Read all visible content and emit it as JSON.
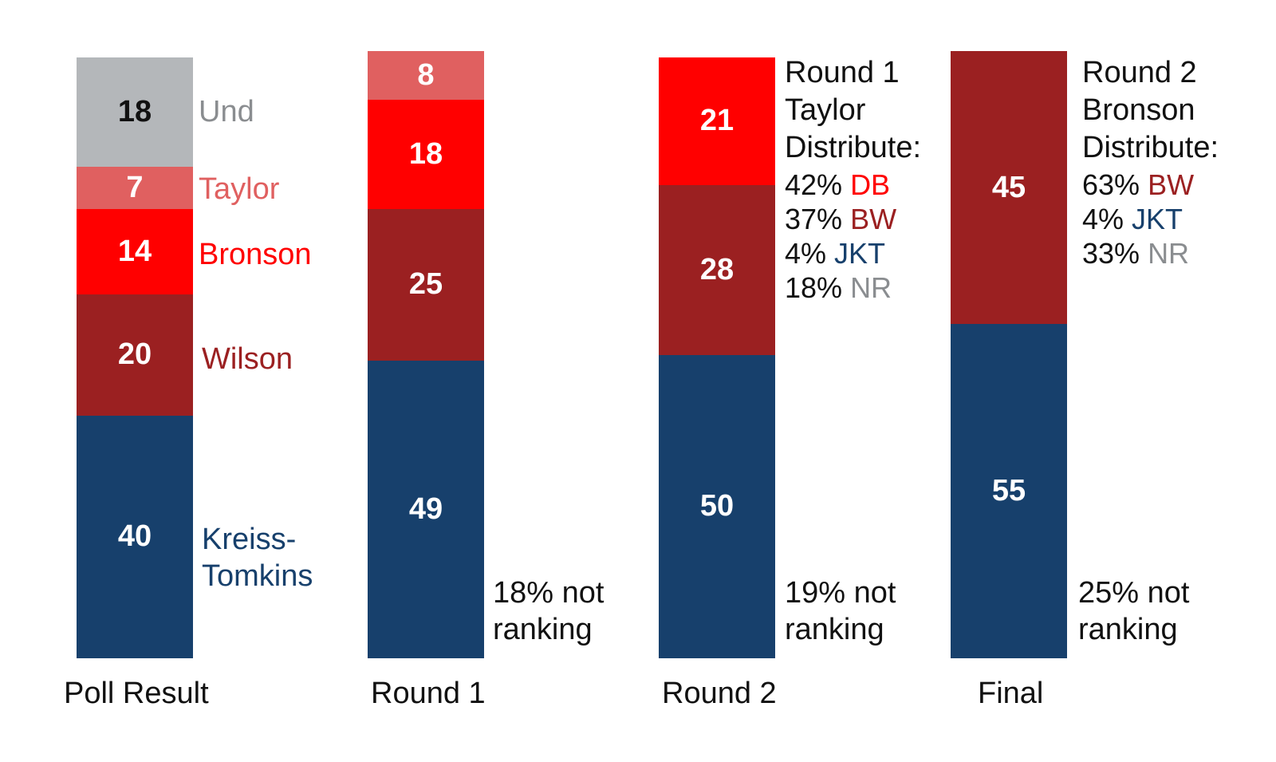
{
  "chart_data": {
    "type": "bar",
    "stacked": true,
    "categories": [
      "Poll Result",
      "Round 1",
      "Round 2",
      "Final"
    ],
    "series": [
      {
        "name": "Kreiss-Tomkins",
        "color": "#17406c",
        "values": [
          40,
          49,
          50,
          55
        ]
      },
      {
        "name": "Wilson",
        "color": "#9b2021",
        "values": [
          20,
          25,
          28,
          45
        ]
      },
      {
        "name": "Bronson",
        "color": "#ff0000",
        "values": [
          14,
          18,
          21,
          null
        ]
      },
      {
        "name": "Taylor",
        "color": "#e06060",
        "values": [
          7,
          8,
          null,
          null
        ]
      },
      {
        "name": "Und",
        "color": "#b4b7ba",
        "values": [
          18,
          null,
          null,
          null
        ]
      }
    ],
    "legend_labels": [
      {
        "text": "Und",
        "color": "#8a8d90"
      },
      {
        "text": "Taylor",
        "color": "#e06060"
      },
      {
        "text": "Bronson",
        "color": "#ff0000"
      },
      {
        "text": "Wilson",
        "color": "#9b2021"
      },
      {
        "text": "Kreiss-",
        "color": "#17406c"
      },
      {
        "text": "Tomkins",
        "color": "#17406c"
      }
    ],
    "notes": [
      {
        "line1": "18% not",
        "line2": "ranking"
      },
      {
        "line1": "19% not",
        "line2": "ranking"
      },
      {
        "line1": "25% not",
        "line2": "ranking"
      }
    ],
    "distributions": [
      {
        "title": [
          "Round 1",
          "Taylor",
          "Distribute:"
        ],
        "rows": [
          {
            "pct": "42%",
            "code": "DB",
            "color": "#ff0000"
          },
          {
            "pct": "37%",
            "code": "BW",
            "color": "#9b2021"
          },
          {
            "pct": "4%",
            "code": "JKT",
            "color": "#17406c"
          },
          {
            "pct": "18%",
            "code": "NR",
            "color": "#8a8d90"
          }
        ]
      },
      {
        "title": [
          "Round 2",
          "Bronson",
          "Distribute:"
        ],
        "rows": [
          {
            "pct": "63%",
            "code": "BW",
            "color": "#9b2021"
          },
          {
            "pct": "4%",
            "code": "JKT",
            "color": "#17406c"
          },
          {
            "pct": "33%",
            "code": "NR",
            "color": "#8a8d90"
          }
        ]
      }
    ]
  }
}
